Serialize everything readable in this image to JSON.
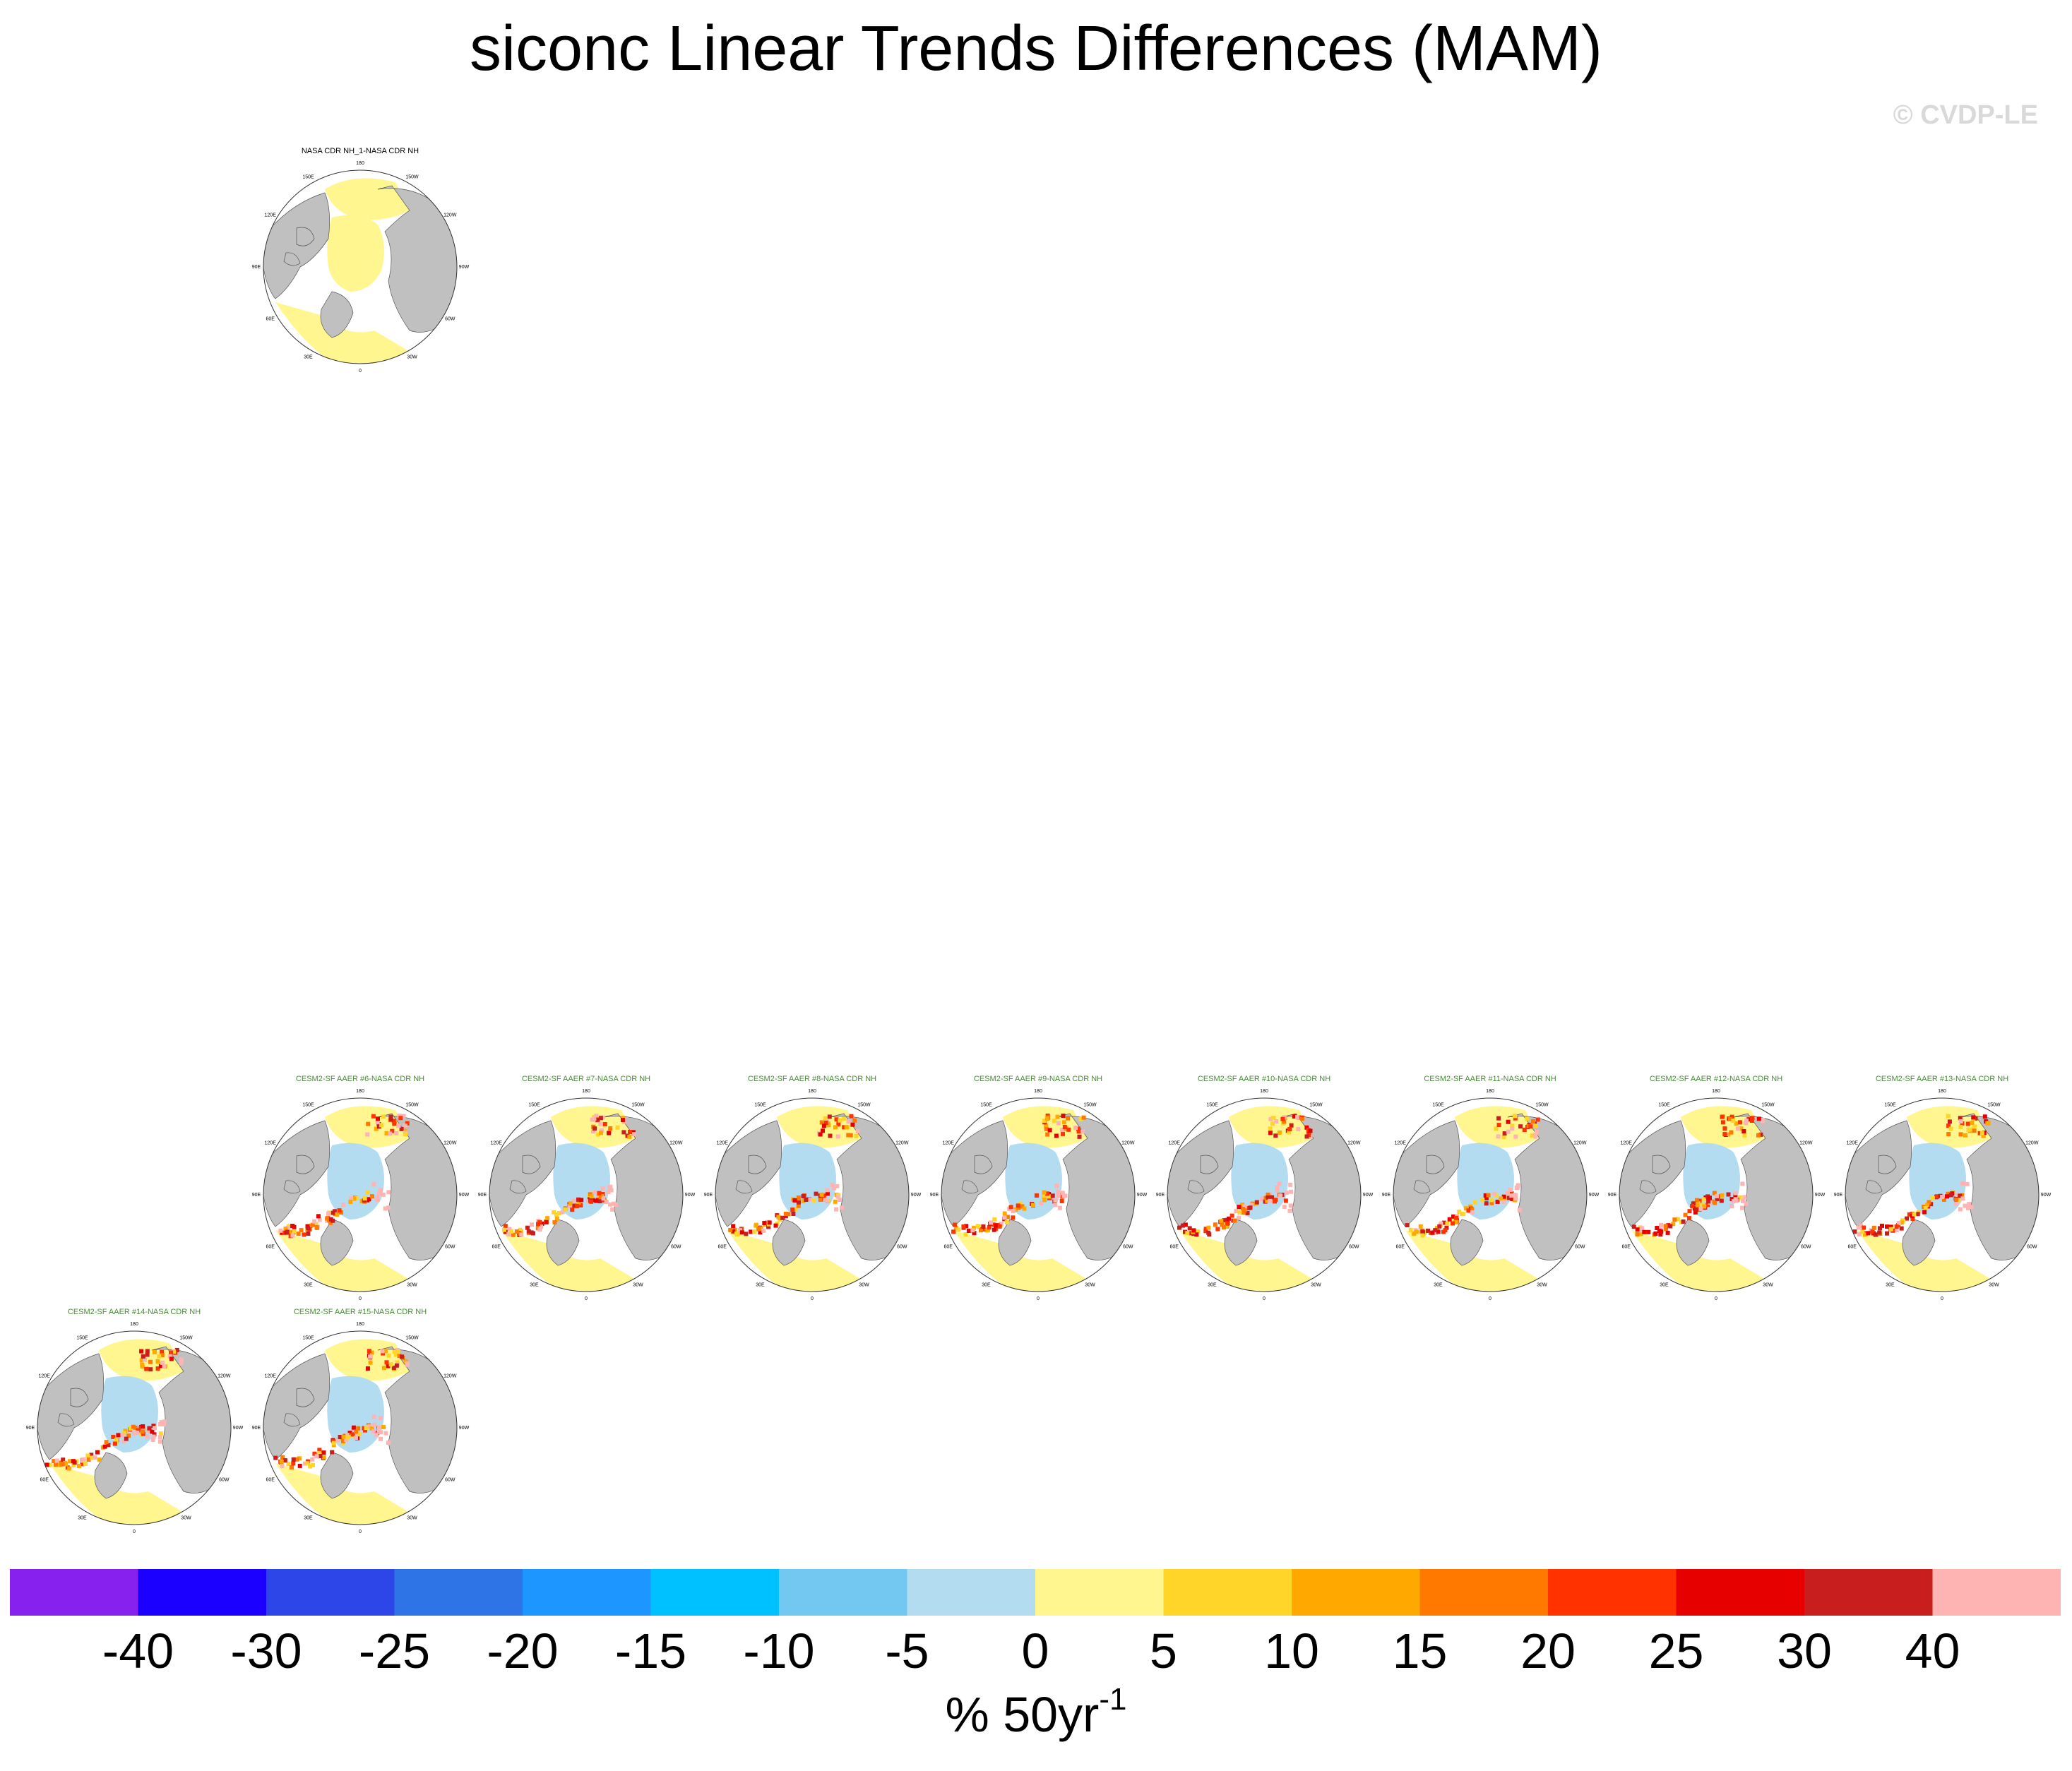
{
  "title": "siconc Linear Trends Differences (MAM)",
  "watermark": "© CVDP-LE",
  "panels": [
    {
      "title": "NASA CDR NH_1-NASA CDR NH",
      "title_color": "#000000",
      "variant": "obs"
    },
    {
      "title": "CESM2-SF AAER #6-NASA CDR NH",
      "title_color": "#4a8a3a",
      "variant": "model"
    },
    {
      "title": "CESM2-SF AAER #7-NASA CDR NH",
      "title_color": "#4a8a3a",
      "variant": "model"
    },
    {
      "title": "CESM2-SF AAER #8-NASA CDR NH",
      "title_color": "#4a8a3a",
      "variant": "model"
    },
    {
      "title": "CESM2-SF AAER #9-NASA CDR NH",
      "title_color": "#4a8a3a",
      "variant": "model"
    },
    {
      "title": "CESM2-SF AAER #10-NASA CDR NH",
      "title_color": "#4a8a3a",
      "variant": "model"
    },
    {
      "title": "CESM2-SF AAER #11-NASA CDR NH",
      "title_color": "#4a8a3a",
      "variant": "model"
    },
    {
      "title": "CESM2-SF AAER #12-NASA CDR NH",
      "title_color": "#4a8a3a",
      "variant": "model"
    },
    {
      "title": "CESM2-SF AAER #13-NASA CDR NH",
      "title_color": "#4a8a3a",
      "variant": "model"
    },
    {
      "title": "CESM2-SF AAER #14-NASA CDR NH",
      "title_color": "#4a8a3a",
      "variant": "model"
    },
    {
      "title": "CESM2-SF AAER #15-NASA CDR NH",
      "title_color": "#4a8a3a",
      "variant": "model"
    }
  ],
  "lon_labels": [
    "180",
    "150E",
    "120E",
    "90E",
    "60E",
    "30E",
    "0",
    "30W",
    "60W",
    "90W",
    "120W",
    "150W"
  ],
  "colors": {
    "land": "#c0c0c0",
    "coast": "#555555",
    "positive_small": "#fff68f",
    "negative_small": "#b4dcf0"
  },
  "colorbar": {
    "colors": [
      "#8722ee",
      "#1c00ff",
      "#2c46e8",
      "#2f74e6",
      "#1e96ff",
      "#00c1ff",
      "#73c8f1",
      "#b4dcf0",
      "#fff68f",
      "#ffd52a",
      "#ffa800",
      "#ff7800",
      "#ff3200",
      "#e60000",
      "#c81e1e",
      "#ffb4b4"
    ],
    "labels": [
      "-40",
      "-30",
      "-25",
      "-20",
      "-15",
      "-10",
      "-5",
      "0",
      "5",
      "10",
      "15",
      "20",
      "25",
      "30",
      "40"
    ],
    "units": "% 50yr",
    "units_exp": "-1"
  }
}
